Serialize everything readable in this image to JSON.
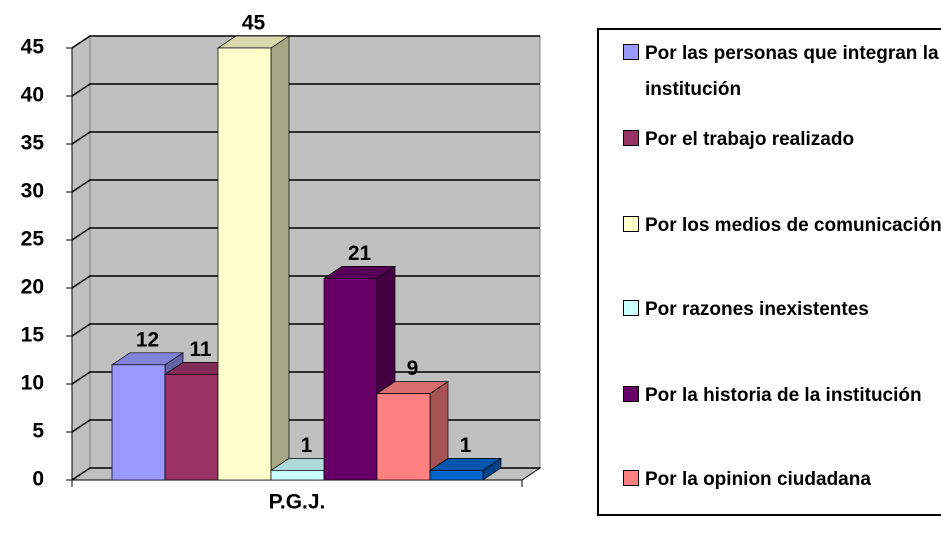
{
  "chart_data": {
    "type": "bar3d",
    "categories": [
      "P.G.J."
    ],
    "series": [
      {
        "name": "Por las personas que integran la institución",
        "color": "#9999ff",
        "values": [
          12
        ]
      },
      {
        "name": "Por el trabajo realizado",
        "color": "#993366",
        "values": [
          11
        ]
      },
      {
        "name": "Por los medios de comunicación",
        "color": "#ffffcc",
        "values": [
          45
        ]
      },
      {
        "name": "Por razones inexistentes",
        "color": "#ccffff",
        "values": [
          1
        ]
      },
      {
        "name": "Por la historia de la institución",
        "color": "#660066",
        "values": [
          21
        ]
      },
      {
        "name": "Por la opinion ciudadana",
        "color": "#ff8080",
        "values": [
          9
        ]
      },
      {
        "color": "#0066cc",
        "values": [
          1
        ]
      }
    ],
    "ylim": [
      0,
      45
    ],
    "yticks": [
      0,
      5,
      10,
      15,
      20,
      25,
      30,
      35,
      40,
      45
    ],
    "grid": true,
    "legend": "right"
  }
}
